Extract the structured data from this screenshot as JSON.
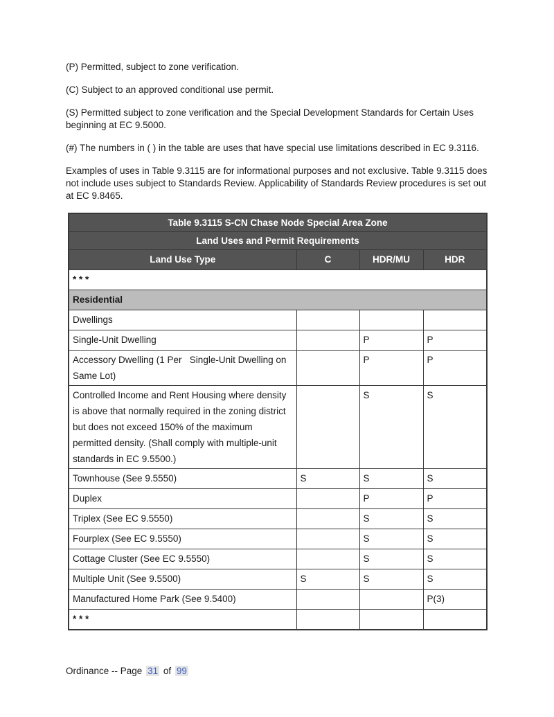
{
  "page": {
    "paragraphs": [
      "(P) Permitted, subject to zone verification.",
      "(C) Subject to an approved conditional use permit.",
      "(S) Permitted subject to zone verification and the Special Development Standards for Certain Uses beginning at EC 9.5000.",
      "(#) The numbers in ( ) in the table are uses that have special use limitations described in EC 9.3116.",
      "Examples of uses in Table 9.3115 are for informational purposes and not exclusive. Table 9.3115 does not include uses subject to Standards Review. Applicability of Standards Review procedures is set out at EC 9.8465."
    ]
  },
  "table": {
    "title_line1": "Table 9.3115 S-CN Chase Node Special Area Zone",
    "title_line2": "Land Uses and Permit Requirements",
    "columns": [
      "Land Use Type",
      "C",
      "HDR/MU",
      "HDR"
    ],
    "rows": [
      {
        "type": "ellipsis",
        "label": "* * *"
      },
      {
        "type": "section",
        "label": "Residential"
      },
      {
        "type": "use",
        "indent": 0,
        "label": "Dwellings",
        "c": "",
        "hdr_mu": "",
        "hdr": ""
      },
      {
        "type": "use",
        "indent": 1,
        "label": "Single-Unit Dwelling",
        "c": "",
        "hdr_mu": "P",
        "hdr": "P"
      },
      {
        "type": "use",
        "indent": 1,
        "label": "Accessory Dwelling (1 Per   Single-Unit Dwelling on Same Lot)",
        "c": "",
        "hdr_mu": "P",
        "hdr": "P"
      },
      {
        "type": "use",
        "indent": 1,
        "label": "Controlled Income and Rent Housing where density is above that normally required in the zoning district but does not exceed 150% of the maximum permitted density. (Shall comply with multiple-unit standards in EC 9.5500.)",
        "c": "",
        "hdr_mu": "S",
        "hdr": "S"
      },
      {
        "type": "use",
        "indent": 1,
        "label": "Townhouse (See 9.5550)",
        "c": "S",
        "hdr_mu": "S",
        "hdr": "S"
      },
      {
        "type": "use",
        "indent": 1,
        "label": "Duplex",
        "c": "",
        "hdr_mu": "P",
        "hdr": "P"
      },
      {
        "type": "use",
        "indent": 1,
        "label": "Triplex (See EC 9.5550)",
        "c": "",
        "hdr_mu": "S",
        "hdr": "S"
      },
      {
        "type": "use",
        "indent": 1,
        "label": "Fourplex (See EC 9.5550)",
        "c": "",
        "hdr_mu": "S",
        "hdr": "S"
      },
      {
        "type": "use",
        "indent": 1,
        "label": "Cottage Cluster (See EC 9.5550)",
        "c": "",
        "hdr_mu": "S",
        "hdr": "S"
      },
      {
        "type": "use",
        "indent": 1,
        "label": "Multiple Unit (See 9.5500)",
        "c": "S",
        "hdr_mu": "S",
        "hdr": "S"
      },
      {
        "type": "use",
        "indent": 1,
        "label": "Manufactured Home Park (See 9.5400)",
        "c": "",
        "hdr_mu": "",
        "hdr": "P(3)"
      },
      {
        "type": "use_ellipsis",
        "indent": 0,
        "label": "* * *",
        "c": "",
        "hdr_mu": "",
        "hdr": ""
      }
    ]
  },
  "footer": {
    "prefix": "Ordinance -- Page",
    "page_number": "31",
    "of_label": "of",
    "total_pages": "99"
  },
  "colors": {
    "header_bg": "#545454",
    "header_text": "#ffffff",
    "section_bg": "#bcbcbc",
    "border_color": "#393939",
    "field_color": "#3a5dbe",
    "field_bg": "#e4e4e4"
  }
}
